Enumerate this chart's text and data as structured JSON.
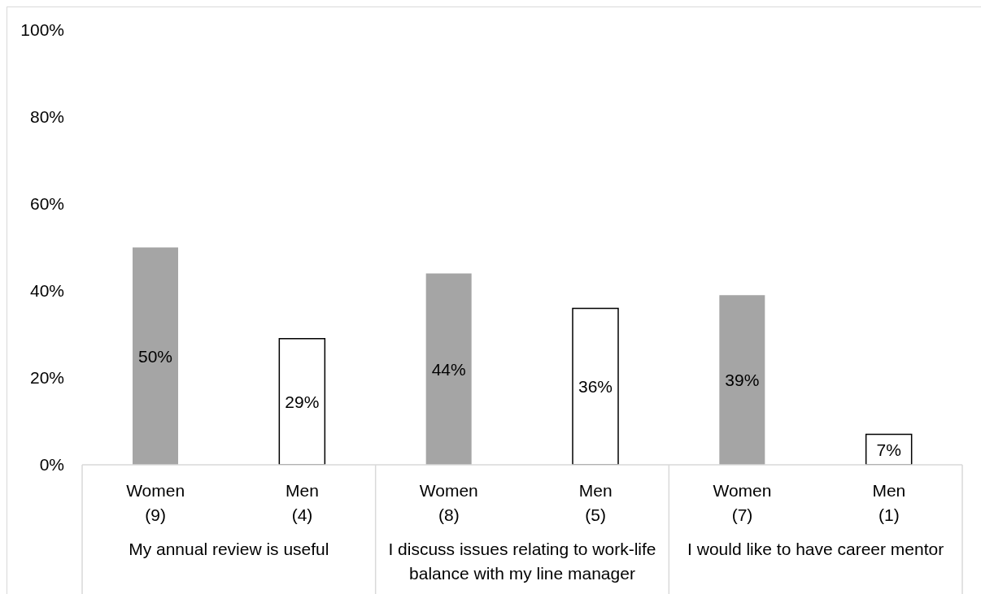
{
  "chart_data": {
    "type": "bar",
    "categories": [
      "Women\n(9)",
      "Men\n(4)",
      "Women\n(8)",
      "Men\n(5)",
      "Women\n(7)",
      "Men\n(1)"
    ],
    "values": [
      50,
      29,
      44,
      36,
      39,
      7
    ],
    "colors": [
      "#a5a5a5",
      "#ffffff",
      "#a5a5a5",
      "#ffffff",
      "#a5a5a5",
      "#ffffff"
    ],
    "value_labels": [
      "50%",
      "29%",
      "44%",
      "36%",
      "39%",
      "7%"
    ],
    "ylim": [
      0,
      100
    ],
    "yticks": [
      {
        "value": 0,
        "label": "0%"
      },
      {
        "value": 20,
        "label": "20%"
      },
      {
        "value": 40,
        "label": "40%"
      },
      {
        "value": 60,
        "label": "60%"
      },
      {
        "value": 80,
        "label": "80%"
      },
      {
        "value": 100,
        "label": "100%"
      }
    ],
    "annotations": [
      "My annual review is useful",
      "I discuss issues relating to work-life balance with my line manager",
      "I would like to have career mentor"
    ]
  }
}
